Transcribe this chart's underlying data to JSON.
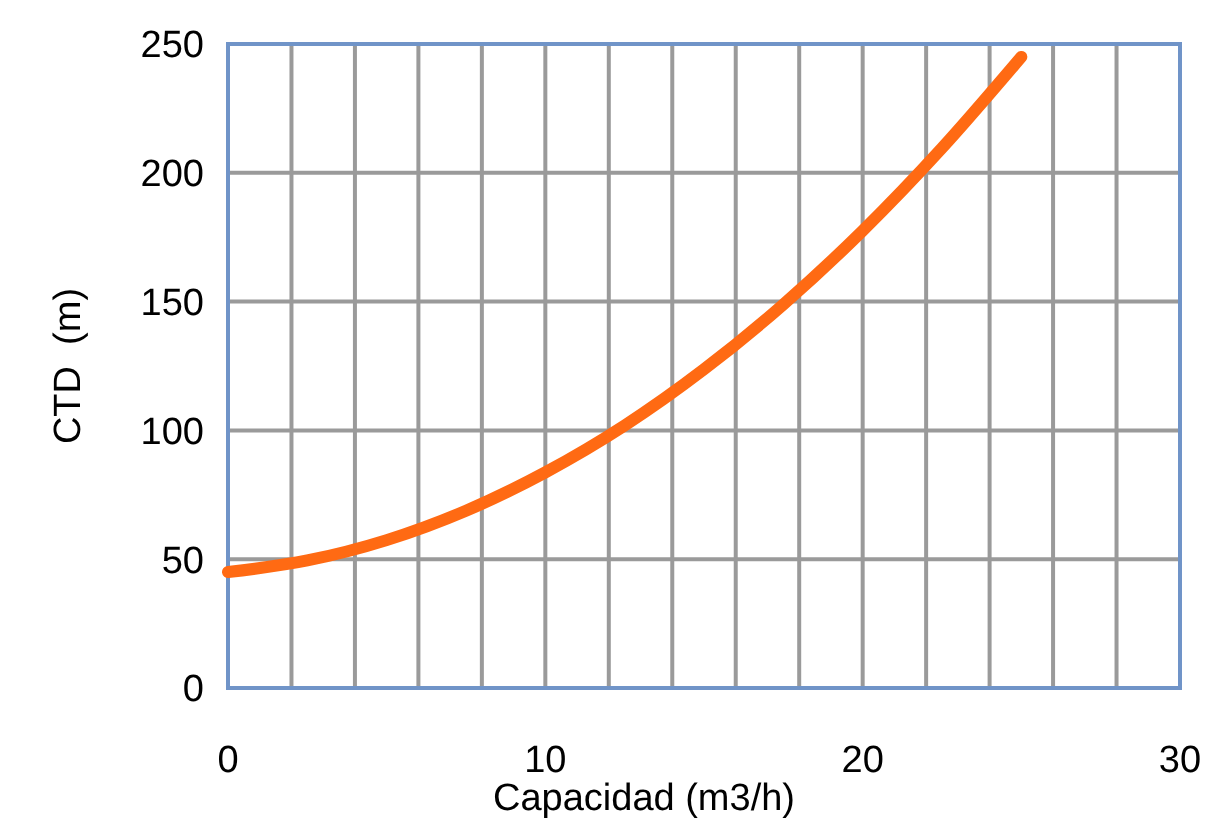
{
  "chart_data": {
    "type": "line",
    "xlabel": "Capacidad (m3/h)",
    "ylabel": "CTD  (m)",
    "x": [
      0,
      2.5,
      5,
      7.5,
      10,
      12.5,
      15,
      17.5,
      20,
      22.5,
      25
    ],
    "series": [
      {
        "color": "#ff6a13",
        "values": [
          45,
          49.5,
          57.4,
          68.8,
          83.7,
          101.9,
          123.7,
          148.9,
          177.5,
          209.6,
          245
        ]
      }
    ],
    "xlim": [
      0,
      30
    ],
    "xticks": [
      0,
      {
        "value": 2,
        "label": null
      },
      {
        "value": 4,
        "label": null
      },
      {
        "value": 6,
        "label": null
      },
      {
        "value": 8,
        "label": null
      },
      10,
      {
        "value": 12,
        "label": null
      },
      {
        "value": 14,
        "label": null
      },
      {
        "value": 16,
        "label": null
      },
      {
        "value": 18,
        "label": null
      },
      20,
      {
        "value": 22,
        "label": null
      },
      {
        "value": 24,
        "label": null
      },
      {
        "value": 26,
        "label": null
      },
      {
        "value": 28,
        "label": null
      },
      30
    ],
    "ylim": [
      0,
      250
    ],
    "yticks": [
      0,
      50,
      100,
      150,
      200,
      250
    ],
    "grid": true,
    "marker": "none",
    "line_style": "solid"
  }
}
